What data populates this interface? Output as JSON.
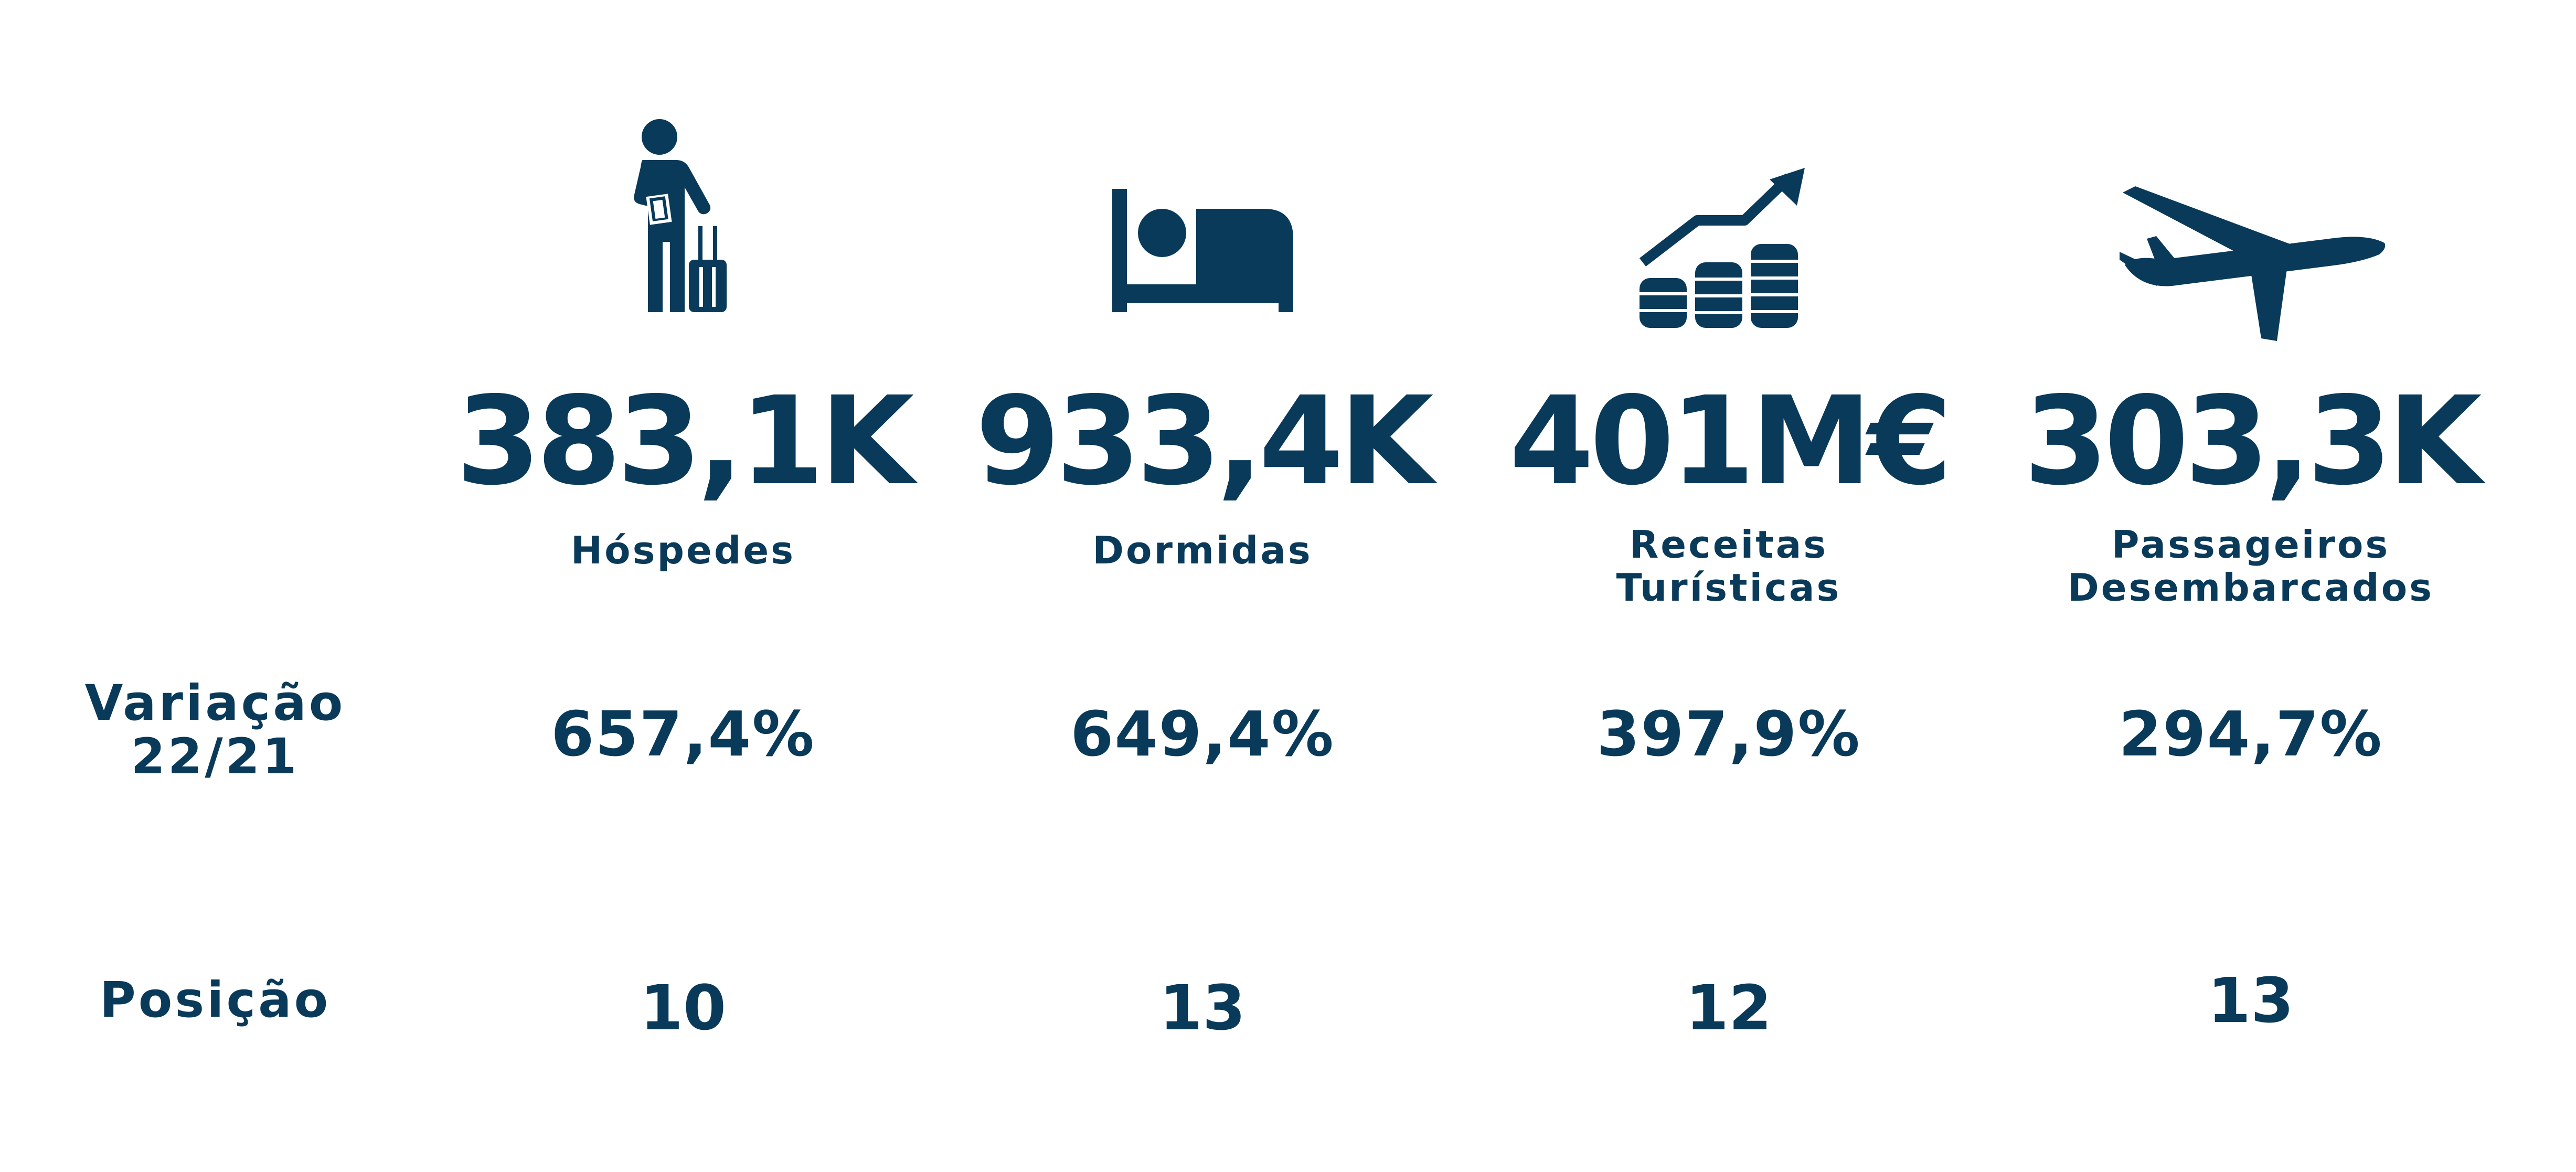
{
  "colors": {
    "primary": "#0a3a5a",
    "background": "#ffffff"
  },
  "rows": {
    "variation_label": [
      "Variação",
      "22/21"
    ],
    "position_label": "Posição"
  },
  "metrics": [
    {
      "icon": "traveler-with-luggage-icon",
      "value": "383,1K",
      "label": [
        "Hóspedes"
      ],
      "variation": "657,4%",
      "position": "10"
    },
    {
      "icon": "bed-icon",
      "value": "933,4K",
      "label": [
        "Dormidas"
      ],
      "variation": "649,4%",
      "position": "13"
    },
    {
      "icon": "coins-growth-chart-icon",
      "value": "401M€",
      "label": [
        "Receitas",
        "Turísticas"
      ],
      "variation": "397,9%",
      "position": "12"
    },
    {
      "icon": "airplane-icon",
      "value": "303,3K",
      "label": [
        "Passageiros",
        "Desembarcados"
      ],
      "variation": "294,7%",
      "position": "13"
    }
  ]
}
